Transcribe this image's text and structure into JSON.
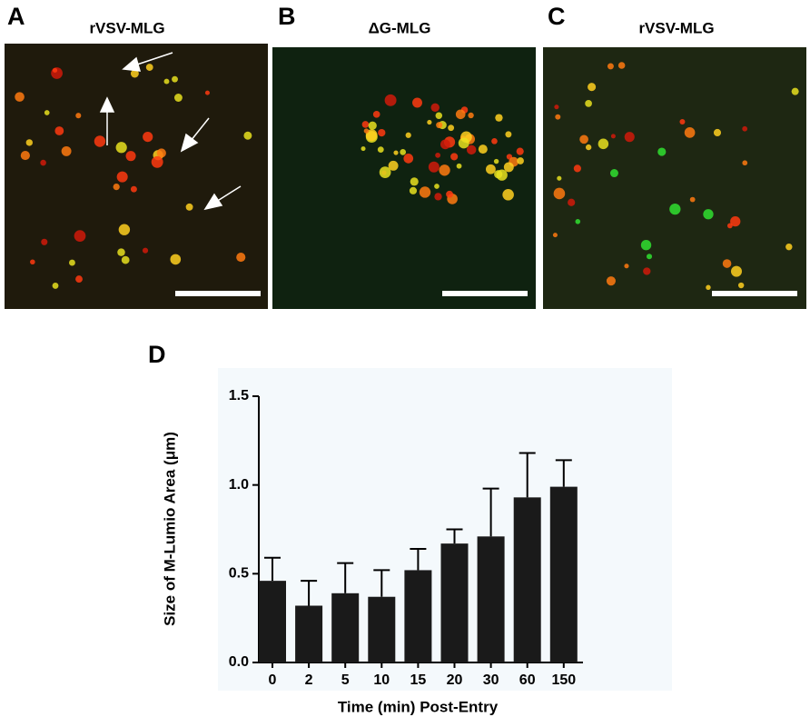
{
  "panels": [
    {
      "label": "A",
      "title": "rVSV-MLG"
    },
    {
      "label": "B",
      "title": "ΔG-MLG"
    },
    {
      "label": "C",
      "title": "rVSV-MLG"
    }
  ],
  "chart_data": {
    "type": "bar",
    "panel_label": "D",
    "x_label": "Time (min) Post-Entry",
    "y_label": "Size of M-Lumio Area (μm)",
    "categories": [
      "0",
      "2",
      "5",
      "10",
      "15",
      "20",
      "30",
      "60",
      "150"
    ],
    "values": [
      0.46,
      0.32,
      0.39,
      0.37,
      0.52,
      0.67,
      0.71,
      0.93,
      0.99
    ],
    "errors": [
      0.13,
      0.14,
      0.17,
      0.15,
      0.12,
      0.08,
      0.27,
      0.25,
      0.15
    ],
    "color": "#1a1a1a",
    "ylim": [
      0,
      1.5
    ],
    "yticks": [
      {
        "value": 0,
        "label": "0.0"
      },
      0.5,
      {
        "value": 1,
        "label": "1.0"
      },
      1.5
    ]
  }
}
